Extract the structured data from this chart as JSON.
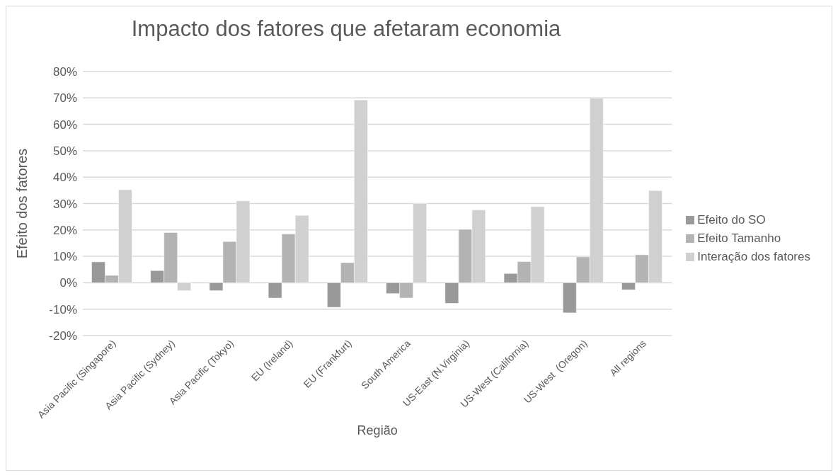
{
  "chart_data": {
    "type": "bar",
    "title": "Impacto dos fatores que afetaram economia",
    "xlabel": "Região",
    "ylabel": "Efeito dos fatores",
    "categories": [
      "Asia Pacific (Singapore)",
      "Asia Pacific (Sydney)",
      "Asia Pacific (Tokyo)",
      "EU (Ireland)",
      "EU (Frankfurt)",
      "South America",
      "US-East (N.Virginia)",
      "US-West (California)",
      "US-West  (Oregon)",
      "All regions"
    ],
    "series": [
      {
        "name": "Efeito do SO",
        "color": "#999999",
        "values": [
          7.9,
          4.6,
          -3,
          -5.8,
          -9.3,
          -4.1,
          -7.8,
          3.5,
          -11.4,
          -2.7
        ]
      },
      {
        "name": "Efeito Tamanho",
        "color": "#b3b3b3",
        "values": [
          2.8,
          19,
          15.6,
          18.5,
          7.6,
          -5.8,
          20.2,
          8,
          9.8,
          10.6
        ]
      },
      {
        "name": "Interação dos fatores",
        "color": "#d0d0d0",
        "values": [
          35.2,
          -3,
          31,
          25.5,
          69.2,
          30,
          27.6,
          28.8,
          69.8,
          34.9
        ]
      }
    ],
    "ylim": [
      -20,
      80
    ],
    "yticks": [
      {
        "value": -20,
        "label": "-20%"
      },
      {
        "value": -10,
        "label": "-10%"
      },
      {
        "value": 0,
        "label": "0%"
      },
      {
        "value": 10,
        "label": "10%"
      },
      {
        "value": 20,
        "label": "20%"
      },
      {
        "value": 30,
        "label": "30%"
      },
      {
        "value": 40,
        "label": "40%"
      },
      {
        "value": 50,
        "label": "50%"
      },
      {
        "value": 60,
        "label": "60%"
      },
      {
        "value": 70,
        "label": "70%"
      },
      {
        "value": 80,
        "label": "80%"
      }
    ],
    "grid": "y",
    "legend": "right"
  }
}
